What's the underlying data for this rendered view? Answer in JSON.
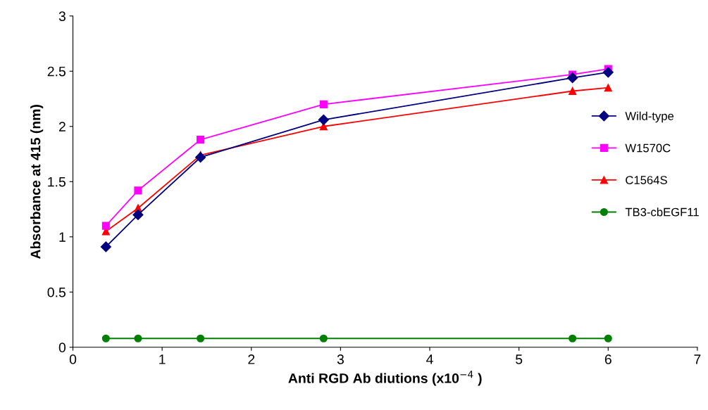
{
  "chart_data": {
    "type": "line",
    "xlabel": "Anti RGD Ab diutions (x10$^{−4}$ )",
    "ylabel": "Absorbance at 415 (nm)",
    "x": [
      0.37,
      0.73,
      1.43,
      2.81,
      5.6,
      6.0
    ],
    "series": [
      {
        "name": "Wild-type",
        "color": "#000080",
        "marker": "diamond",
        "values": [
          0.91,
          1.2,
          1.72,
          2.06,
          2.44,
          2.49
        ]
      },
      {
        "name": "W1570C",
        "color": "#ff00ff",
        "marker": "square",
        "values": [
          1.1,
          1.42,
          1.88,
          2.2,
          2.47,
          2.52
        ]
      },
      {
        "name": "C1564S",
        "color": "#ff0000",
        "marker": "triangle",
        "values": [
          1.05,
          1.26,
          1.74,
          2.0,
          2.32,
          2.35
        ]
      },
      {
        "name": "TB3-cbEGF11",
        "color": "#008000",
        "marker": "circle",
        "values": [
          0.08,
          0.08,
          0.08,
          0.08,
          0.08,
          0.08
        ]
      }
    ],
    "xlim": [
      0,
      7
    ],
    "xticks": [
      0,
      1,
      2,
      3,
      4,
      5,
      6,
      7
    ],
    "ylim": [
      0,
      3
    ],
    "yticks": [
      0,
      0.5,
      1,
      1.5,
      2,
      2.5,
      3
    ],
    "grid": false,
    "legend": "right",
    "line_style": "solid"
  }
}
